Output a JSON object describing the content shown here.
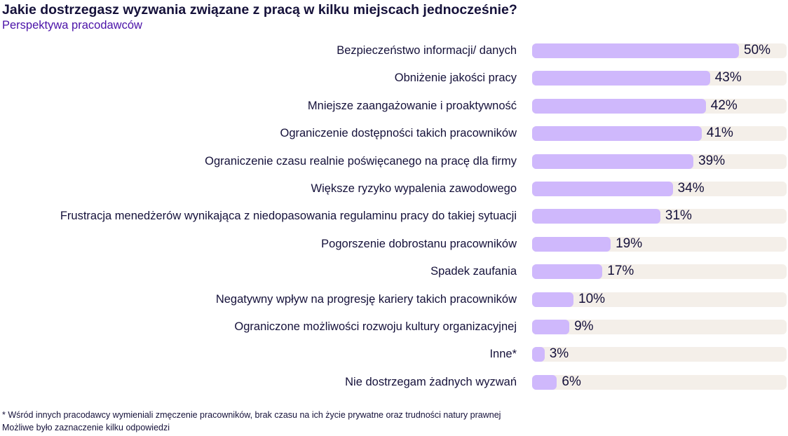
{
  "chart_data": {
    "type": "bar",
    "orientation": "horizontal",
    "title": "Jakie dostrzegasz wyzwania związane z pracą w kilku miejscach jednocześnie?",
    "subtitle": "Perspektywa pracodawców",
    "categories": [
      "Bezpieczeństwo informacji/ danych",
      "Obniżenie jakości pracy",
      "Mniejsze zaangażowanie i proaktywność",
      "Ograniczenie dostępności takich pracowników",
      "Ograniczenie czasu realnie poświęcanego na pracę dla firmy",
      "Większe ryzyko wypalenia zawodowego",
      "Frustracja menedżerów wynikająca z niedopasowania regulaminu pracy do takiej sytuacji",
      "Pogorszenie dobrostanu pracowników",
      "Spadek zaufania",
      "Negatywny wpływ na progresję kariery takich pracowników",
      "Ograniczone możliwości rozwoju kultury organizacyjnej",
      "Inne*",
      "Nie dostrzegam żadnych wyzwań"
    ],
    "values": [
      50,
      43,
      42,
      41,
      39,
      34,
      31,
      19,
      17,
      10,
      9,
      3,
      6
    ],
    "value_labels": [
      "50%",
      "43%",
      "42%",
      "41%",
      "39%",
      "34%",
      "31%",
      "19%",
      "17%",
      "10%",
      "9%",
      "3%",
      "6%"
    ],
    "unit": "%",
    "grid": false,
    "colors": {
      "fill": "#cfb8fc",
      "track": "#f4efe9",
      "text": "#15113a",
      "subtitle": "#4a12a8"
    }
  },
  "footnotes": [
    "* Wśród innych pracodawcy wymieniali zmęczenie pracowników, brak czasu na ich życie prywatne oraz trudności natury prawnej",
    "Możliwe było zaznaczenie kilku odpowiedzi"
  ]
}
